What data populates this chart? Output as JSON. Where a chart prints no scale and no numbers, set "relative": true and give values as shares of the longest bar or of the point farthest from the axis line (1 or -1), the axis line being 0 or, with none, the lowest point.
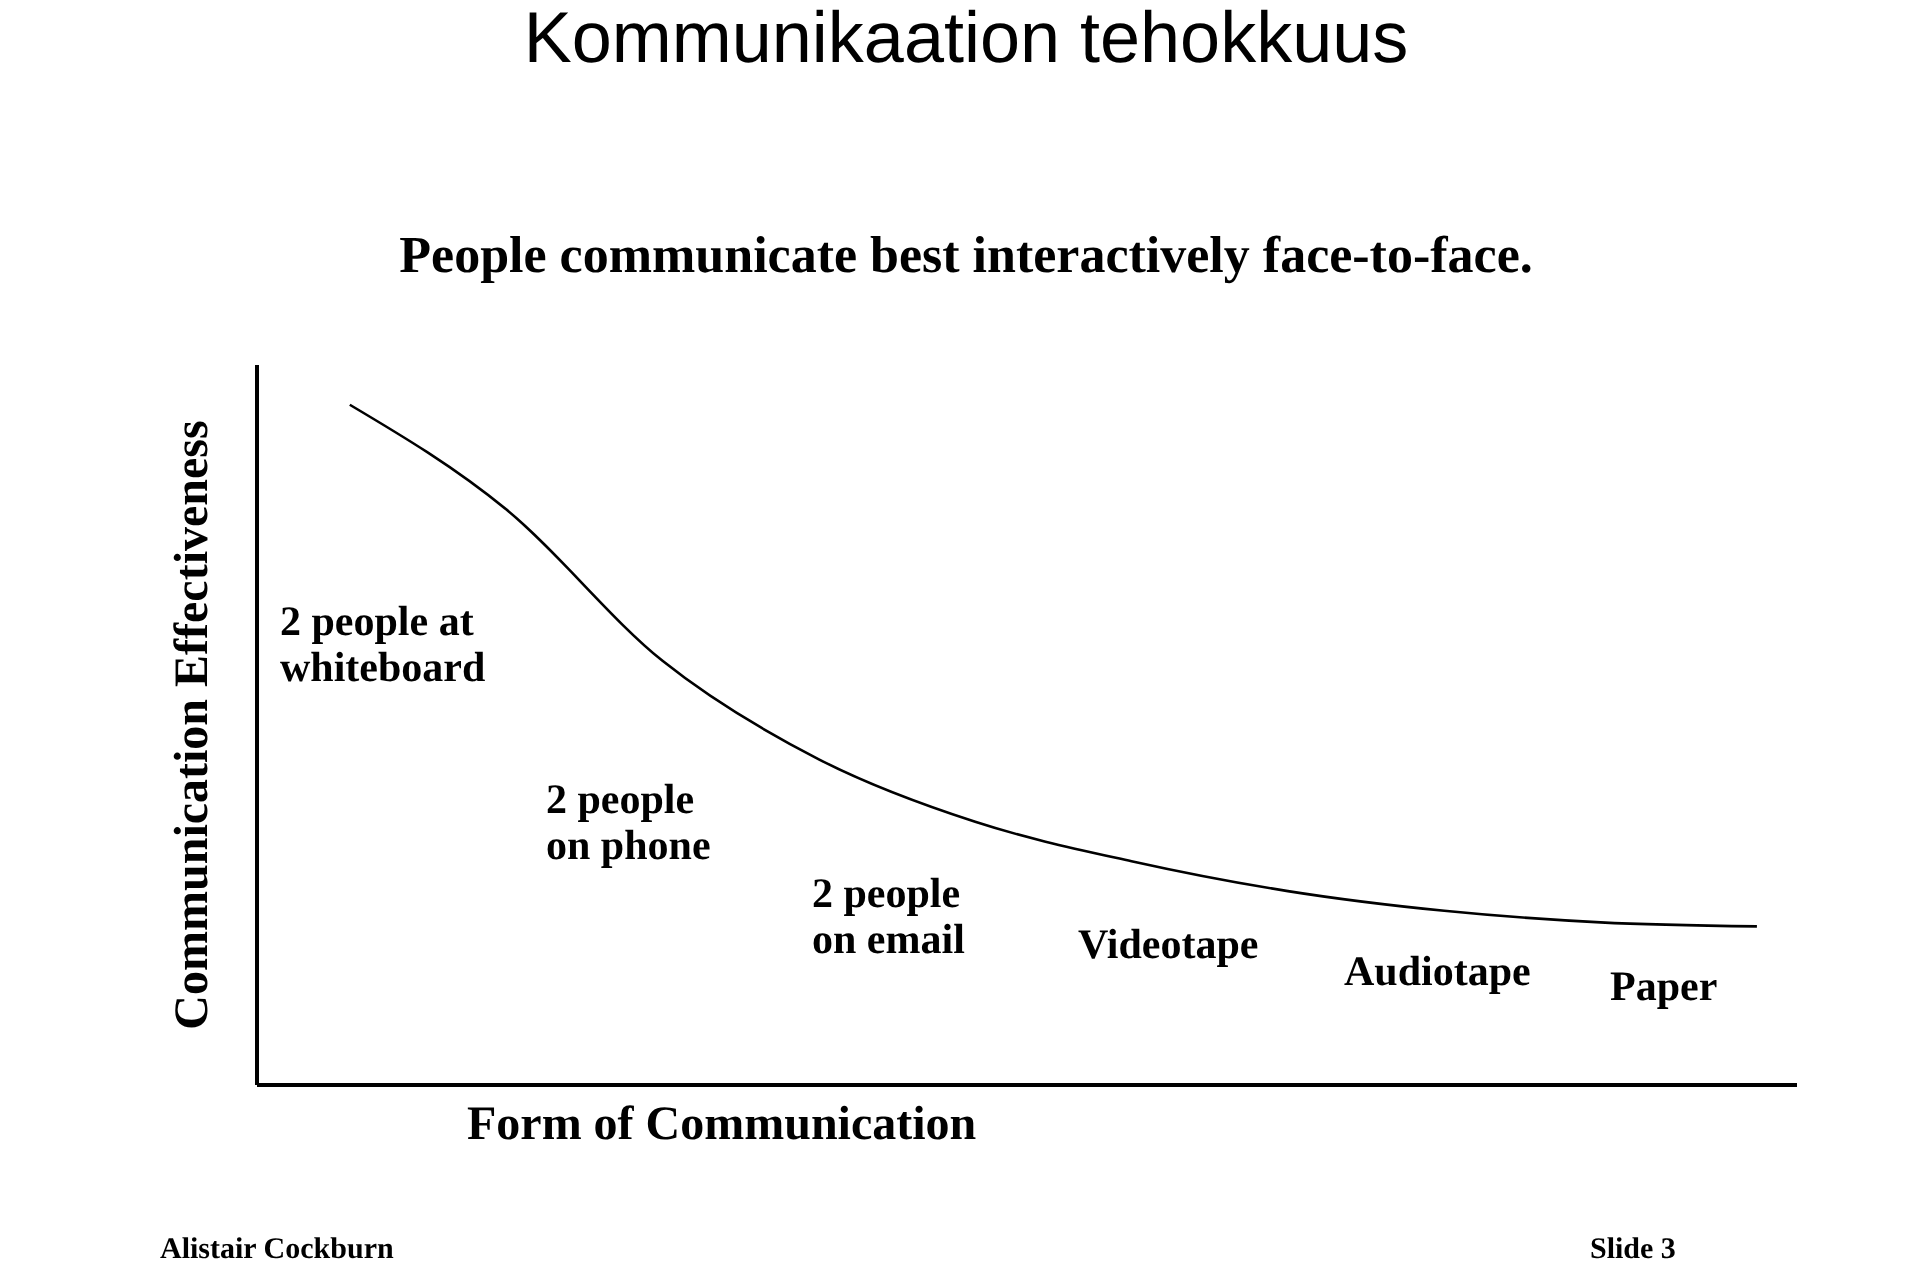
{
  "chart_data": {
    "type": "line",
    "title": "Kommunikaation tehokkuus",
    "subtitle": "People communicate best interactively face-to-face.",
    "xlabel": "Form of Communication",
    "ylabel": "Communication Effectiveness",
    "relative": true,
    "categories": [
      null,
      null,
      null,
      null,
      null,
      null,
      null,
      null,
      null,
      null
    ],
    "series": [
      {
        "color": "#000000",
        "values": [
          1,
          0.846,
          0.623,
          0.478,
          0.386,
          0.328,
          0.284,
          0.255,
          0.238,
          0.232
        ]
      }
    ],
    "annotations": [
      "2 people at\nwhiteboard",
      "2 people\non phone",
      "2 people\non email",
      "Videotape",
      "Audiotape",
      "Paper",
      "Alistair Cockburn",
      "Slide 3"
    ],
    "grid": false,
    "marker": "none",
    "line_style": "solid"
  }
}
